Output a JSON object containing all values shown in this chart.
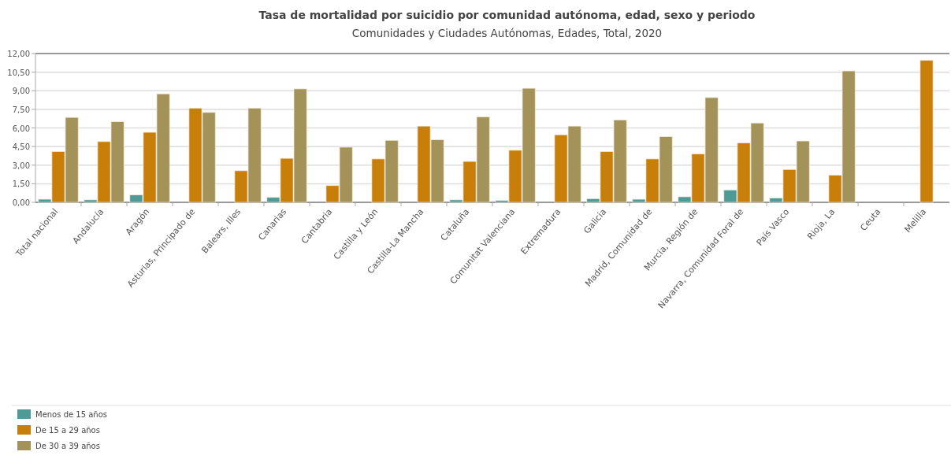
{
  "chart_data": {
    "type": "bar",
    "title": "Tasa de mortalidad por suicidio por comunidad autónoma, edad, sexo y periodo",
    "subtitle": "Comunidades y Ciudades Autónomas, Edades, Total, 2020",
    "categories": [
      "Total nacional",
      "Andalucía",
      "Aragón",
      "Asturias, Principado de",
      "Balears, Illes",
      "Canarias",
      "Cantabria",
      "Castilla y León",
      "Castilla-La Mancha",
      "Cataluña",
      "Comunitat Valenciana",
      "Extremadura",
      "Galicia",
      "Madrid, Comunidad de",
      "Murcia, Región de",
      "Navarra, Comunidad Foral de",
      "País Vasco",
      "Rioja, La",
      "Ceuta",
      "Melilla"
    ],
    "series": [
      {
        "name": "Menos de 15 años",
        "color": "#4e9a96",
        "values": [
          0.25,
          0.2,
          0.6,
          null,
          null,
          0.4,
          null,
          null,
          null,
          0.2,
          0.15,
          null,
          0.3,
          0.25,
          0.45,
          1.0,
          0.35,
          null,
          null,
          null
        ]
      },
      {
        "name": "De 15 a 29 años",
        "color": "#c87f0a",
        "values": [
          4.1,
          4.9,
          5.65,
          7.6,
          2.55,
          3.55,
          1.35,
          3.5,
          6.15,
          3.3,
          4.2,
          5.45,
          4.1,
          3.5,
          3.9,
          4.8,
          2.65,
          2.2,
          null,
          11.45
        ]
      },
      {
        "name": "De 30 a 39 años",
        "color": "#a39358",
        "values": [
          6.85,
          6.5,
          8.75,
          7.25,
          7.6,
          9.15,
          4.45,
          5.0,
          5.05,
          6.9,
          9.2,
          6.15,
          6.65,
          5.3,
          8.45,
          6.4,
          4.95,
          10.6,
          null,
          null
        ]
      }
    ],
    "ylim": [
      0,
      12
    ],
    "yticks": [
      {
        "value": 0,
        "label": "0,00"
      },
      {
        "value": 1.5,
        "label": "1,50"
      },
      {
        "value": 3,
        "label": "3,00"
      },
      {
        "value": 4.5,
        "label": "4,50"
      },
      {
        "value": 6,
        "label": "6,00"
      },
      {
        "value": 7.5,
        "label": "7,50"
      },
      {
        "value": 9,
        "label": "9,00"
      },
      {
        "value": 10.5,
        "label": "10,50"
      },
      {
        "value": 12,
        "label": "12,00"
      }
    ],
    "grid": "y",
    "legend": "bottom left"
  }
}
